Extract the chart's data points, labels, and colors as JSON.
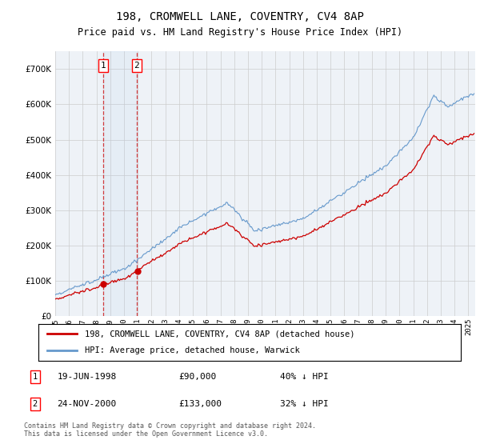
{
  "title": "198, CROMWELL LANE, COVENTRY, CV4 8AP",
  "subtitle": "Price paid vs. HM Land Registry's House Price Index (HPI)",
  "hpi_color": "#6699cc",
  "price_color": "#cc0000",
  "sale1_year": 1998.47,
  "sale1_price": 90000,
  "sale2_year": 2000.92,
  "sale2_price": 133000,
  "sale1_date_str": "19-JUN-1998",
  "sale1_price_str": "£90,000",
  "sale1_hpi_str": "40% ↓ HPI",
  "sale2_date_str": "24-NOV-2000",
  "sale2_price_str": "£133,000",
  "sale2_hpi_str": "32% ↓ HPI",
  "legend_line1": "198, CROMWELL LANE, COVENTRY, CV4 8AP (detached house)",
  "legend_line2": "HPI: Average price, detached house, Warwick",
  "footnote": "Contains HM Land Registry data © Crown copyright and database right 2024.\nThis data is licensed under the Open Government Licence v3.0.",
  "bg_color": "#eef2f7",
  "ylim_max": 750000,
  "yticks": [
    0,
    100000,
    200000,
    300000,
    400000,
    500000,
    600000,
    700000
  ],
  "xmin": 1995,
  "xmax": 2025.5
}
